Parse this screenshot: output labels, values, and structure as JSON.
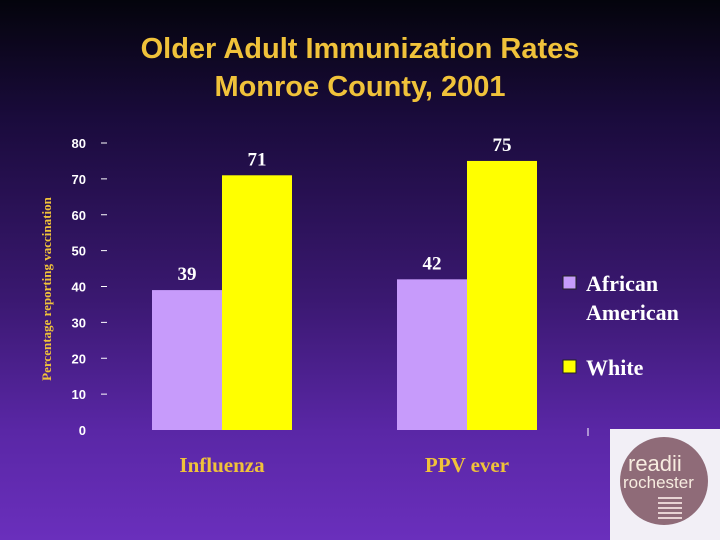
{
  "title": {
    "line1": "Older Adult Immunization Rates",
    "line2": "Monroe County, 2001"
  },
  "chart_data": {
    "type": "bar",
    "title": "Older Adult Immunization Rates Monroe County, 2001",
    "ylabel": "Percentage reporting vaccination",
    "xlabel": "",
    "ylim": [
      0,
      80
    ],
    "yticks": [
      0,
      10,
      20,
      30,
      40,
      50,
      60,
      70,
      80
    ],
    "grid": false,
    "legend_position": "right",
    "categories": [
      "Influenza",
      "PPV ever"
    ],
    "series": [
      {
        "name": "African American",
        "values": [
          39,
          42
        ],
        "color": "#c79bfb"
      },
      {
        "name": "White",
        "values": [
          71,
          75
        ],
        "color": "#ffff00"
      }
    ],
    "data_labels": [
      [
        "39",
        "42"
      ],
      [
        "71",
        "75"
      ]
    ]
  },
  "legend": {
    "items": [
      {
        "line1": "African",
        "line2": "American",
        "color": "#c79bfb"
      },
      {
        "line1": "White",
        "line2": "",
        "color": "#ffff00"
      }
    ]
  },
  "logo": {
    "word1": "read",
    "word2": "ii",
    "word3": "rochester"
  },
  "colors": {
    "title": "#f0c23a",
    "axis_text": "#ffffff",
    "logo_bg": "#f2eff6",
    "logo_circle": "#8f6b78"
  }
}
